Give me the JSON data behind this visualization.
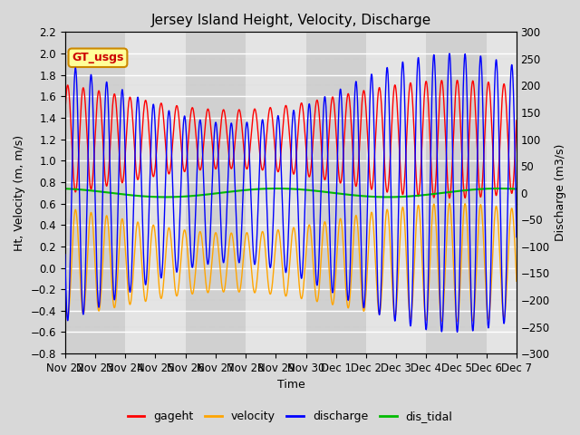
{
  "title": "Jersey Island Height, Velocity, Discharge",
  "xlabel": "Time",
  "ylabel_left": "Ht, Velocity (m, m/s)",
  "ylabel_right": "Discharge (m3/s)",
  "ylim_left": [
    -0.8,
    2.2
  ],
  "ylim_right": [
    -300,
    300
  ],
  "total_days": 15,
  "xtick_labels": [
    "Nov 22",
    "Nov 23",
    "Nov 24",
    "Nov 25",
    "Nov 26",
    "Nov 27",
    "Nov 28",
    "Nov 29",
    "Nov 30",
    "Dec 1",
    "Dec 2",
    "Dec 3",
    "Dec 4",
    "Dec 5",
    "Dec 6",
    "Dec 7"
  ],
  "gageht_color": "#ff0000",
  "velocity_color": "#ffa500",
  "discharge_color": "#0000ff",
  "dis_tidal_color": "#00bb00",
  "legend_labels": [
    "gageht",
    "velocity",
    "discharge",
    "dis_tidal"
  ],
  "annotation_text": "GT_usgs",
  "annotation_color": "#cc0000",
  "annotation_bg": "#ffff99",
  "annotation_border": "#cc8800",
  "tidal_period_hours": 12.42,
  "gageht_mean": 1.2,
  "gageht_amp": 0.55,
  "velocity_mean": 0.05,
  "velocity_amp": 0.55,
  "discharge_amp": 260,
  "discharge_mean": 0,
  "dis_tidal_mean": 0.7,
  "dis_tidal_amp": 0.04,
  "spring_neap_days": 14.77,
  "band_color_light": "#e4e4e4",
  "band_color_dark": "#d0d0d0",
  "fig_bg": "#d8d8d8",
  "plot_bg": "#e8e8e8",
  "grid_color": "#ffffff",
  "linewidth": 1.0
}
